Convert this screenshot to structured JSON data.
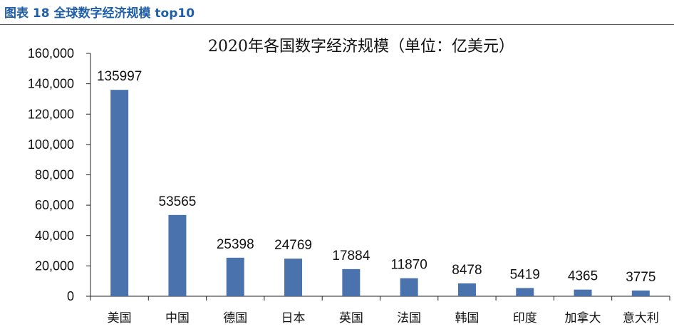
{
  "caption": "图表 18 全球数字经济规模 top10",
  "colors": {
    "bar": "#4a72ad",
    "caption": "#1f5ea8"
  },
  "chart_data": {
    "type": "bar",
    "title": "2020年各国数字经济规模（单位：亿美元）",
    "categories": [
      "美国",
      "中国",
      "德国",
      "日本",
      "英国",
      "法国",
      "韩国",
      "印度",
      "加拿大",
      "意大利"
    ],
    "values": [
      135997,
      53565,
      25398,
      24769,
      17884,
      11870,
      8478,
      5419,
      4365,
      3775
    ],
    "ylim": [
      0,
      160000
    ],
    "yticks": [
      "0",
      "20,000",
      "40,000",
      "60,000",
      "80,000",
      "100,000",
      "120,000",
      "140,000",
      "160,000"
    ],
    "grid": false,
    "legend": "none"
  }
}
